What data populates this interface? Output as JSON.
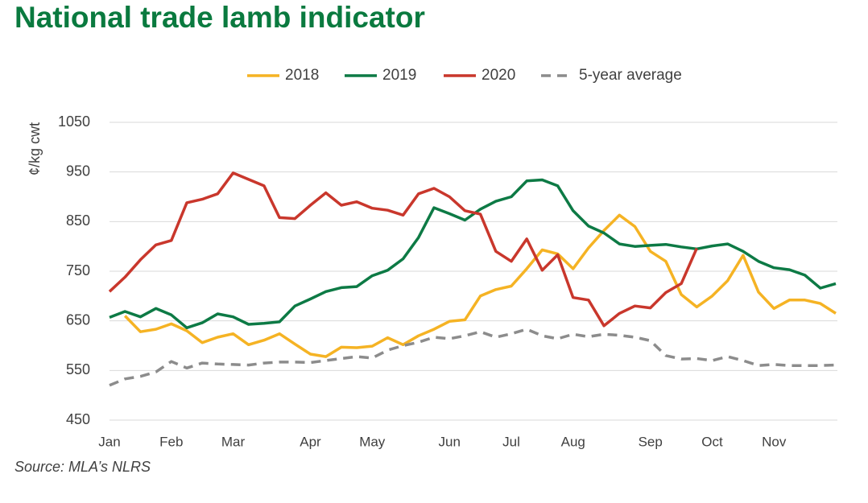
{
  "chart_data": {
    "type": "line",
    "title": "National trade lamb indicator",
    "ylabel": "¢/kg cwt",
    "source": "Source: MLA’s NLRS",
    "categories": [
      "Jan",
      null,
      null,
      null,
      "Feb",
      null,
      null,
      null,
      "Mar",
      null,
      null,
      null,
      null,
      "Apr",
      null,
      null,
      null,
      "May",
      null,
      null,
      null,
      null,
      "Jun",
      null,
      null,
      null,
      "Jul",
      null,
      null,
      null,
      "Aug",
      null,
      null,
      null,
      null,
      "Sep",
      null,
      null,
      null,
      "Oct",
      null,
      null,
      null,
      "Nov",
      null,
      null,
      null,
      null
    ],
    "series": [
      {
        "name": "2018",
        "color": "#f5b324",
        "dashed": false,
        "values": [
          null,
          660,
          628,
          633,
          644,
          630,
          606,
          617,
          624,
          602,
          611,
          624,
          603,
          583,
          578,
          597,
          596,
          599,
          616,
          602,
          620,
          633,
          649,
          652,
          700,
          713,
          720,
          755,
          793,
          785,
          755,
          797,
          832,
          863,
          840,
          790,
          770,
          703,
          678,
          700,
          731,
          782,
          708,
          675,
          692,
          692,
          685,
          665
        ]
      },
      {
        "name": "2019",
        "color": "#0d7a45",
        "dashed": false,
        "values": [
          657,
          669,
          658,
          675,
          662,
          636,
          646,
          664,
          658,
          643,
          645,
          648,
          680,
          694,
          709,
          717,
          719,
          741,
          752,
          775,
          818,
          878,
          866,
          853,
          875,
          891,
          900,
          932,
          934,
          922,
          872,
          841,
          827,
          805,
          800,
          802,
          804,
          799,
          795,
          801,
          805,
          790,
          770,
          757,
          753,
          742,
          716,
          725
        ]
      },
      {
        "name": "2020",
        "color": "#c9372c",
        "dashed": false,
        "values": [
          709,
          738,
          773,
          803,
          812,
          888,
          895,
          906,
          948,
          935,
          922,
          858,
          856,
          883,
          908,
          883,
          890,
          877,
          873,
          863,
          906,
          917,
          900,
          872,
          865,
          790,
          770,
          815,
          752,
          783,
          697,
          692,
          640,
          665,
          680,
          676,
          707,
          725,
          796,
          null,
          null,
          null,
          null,
          null,
          null,
          null,
          null,
          null
        ]
      },
      {
        "name": "5-year average",
        "color": "#8c8c8c",
        "dashed": true,
        "values": [
          520,
          533,
          538,
          547,
          568,
          555,
          565,
          563,
          562,
          561,
          565,
          567,
          567,
          566,
          570,
          574,
          578,
          575,
          591,
          600,
          607,
          617,
          614,
          620,
          628,
          617,
          624,
          633,
          620,
          614,
          623,
          618,
          623,
          621,
          617,
          610,
          580,
          573,
          574,
          570,
          578,
          570,
          560,
          562,
          560,
          560,
          560,
          561
        ]
      }
    ],
    "ylim": [
      450,
      1050
    ],
    "yticks": [
      450,
      550,
      650,
      750,
      850,
      950,
      1050
    ],
    "grid": true,
    "legend": "top"
  }
}
